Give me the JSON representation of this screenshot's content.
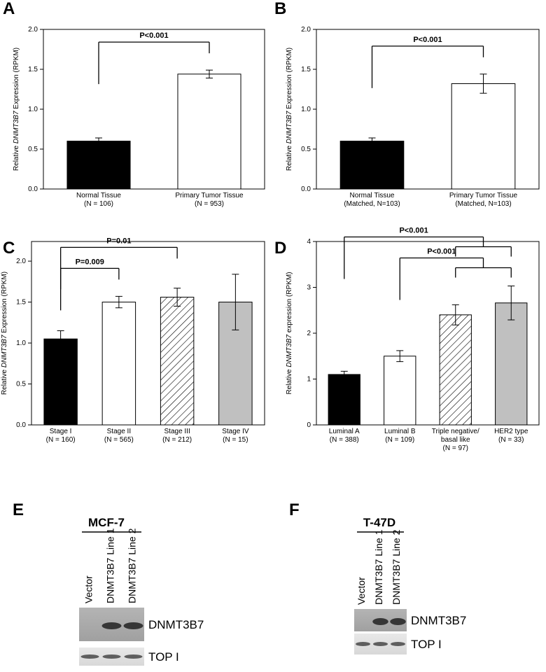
{
  "chart_data": [
    {
      "type": "bar",
      "panel": "A",
      "ylabel": {
        "before": "Relative ",
        "gene": "DNMT3B7",
        "after": " Expression (RPKM)"
      },
      "categories": [
        [
          "Normal Tissue",
          "(N = 106)"
        ],
        [
          "Primary Tumor Tissue",
          "(N = 953)"
        ]
      ],
      "values": [
        0.6,
        1.44
      ],
      "errors": [
        0.04,
        0.05
      ],
      "fills": [
        "#000000",
        "#ffffff"
      ],
      "ylim": [
        0,
        2
      ],
      "yticks": [
        {
          "value": 0,
          "label": "0.0"
        },
        0.5,
        {
          "value": 1,
          "label": "1.0"
        },
        1.5,
        {
          "value": 2,
          "label": "2.0"
        }
      ],
      "comparisons": [
        {
          "label": "P<0.001",
          "from": 0,
          "to": [
            1
          ]
        }
      ]
    },
    {
      "type": "bar",
      "panel": "B",
      "ylabel": {
        "before": "Relative ",
        "gene": "DNMT3B7",
        "after": " Expression (RPKM)"
      },
      "categories": [
        [
          "Normal Tissue",
          "(Matched, N=103)"
        ],
        [
          "Primary Tumor Tissue",
          "(Matched, N=103)"
        ]
      ],
      "values": [
        0.6,
        1.32
      ],
      "errors": [
        0.04,
        0.12
      ],
      "fills": [
        "#000000",
        "#ffffff"
      ],
      "ylim": [
        0,
        2
      ],
      "yticks": [
        {
          "value": 0,
          "label": "0.0"
        },
        0.5,
        {
          "value": 1,
          "label": "1.0"
        },
        1.5,
        {
          "value": 2,
          "label": "2.0"
        }
      ],
      "comparisons": [
        {
          "label": "P<0.001",
          "from": 0,
          "to": [
            1
          ]
        }
      ]
    },
    {
      "type": "bar",
      "panel": "C",
      "ylabel": {
        "before": "Relative ",
        "gene": "DNMT3B7",
        "after": " Expression (RPKM)"
      },
      "categories": [
        [
          "Stage I",
          "(N = 160)"
        ],
        [
          "Stage II",
          "(N = 565)"
        ],
        [
          "Stage III",
          "(N = 212)"
        ],
        [
          "Stage IV",
          "(N = 15)"
        ]
      ],
      "values": [
        1.05,
        1.5,
        1.56,
        1.5
      ],
      "errors": [
        0.1,
        0.07,
        0.11,
        0.34
      ],
      "fills": [
        "#000000",
        "#ffffff",
        "hatch",
        "#c0c0c0"
      ],
      "ylim": [
        0,
        2.24
      ],
      "yticks": [
        {
          "value": 0,
          "label": "0.0"
        },
        0.5,
        {
          "value": 1,
          "label": "1.0"
        },
        1.5,
        {
          "value": 2,
          "label": "2.0"
        }
      ],
      "comparisons": [
        {
          "label": "P=0.009",
          "from": 0,
          "to": [
            1
          ]
        },
        {
          "label": "P=0.01",
          "from": 0,
          "to": [
            2
          ]
        }
      ]
    },
    {
      "type": "bar",
      "panel": "D",
      "ylabel": {
        "before": "Relative ",
        "gene": "DNMT3B7",
        "after": " expression (RPKM)"
      },
      "categories": [
        [
          "Luminal A",
          "(N = 388)"
        ],
        [
          "Luminal B",
          "(N = 109)"
        ],
        [
          "Triple negative/",
          "basal like",
          "(N = 97)"
        ],
        [
          "HER2 type",
          "(N = 33)"
        ]
      ],
      "values": [
        1.1,
        1.5,
        2.4,
        2.66
      ],
      "errors": [
        0.07,
        0.12,
        0.22,
        0.37
      ],
      "fills": [
        "#000000",
        "#ffffff",
        "hatch",
        "#c0c0c0"
      ],
      "ylim": [
        0,
        4
      ],
      "yticks": [
        0,
        1,
        2,
        3,
        4
      ],
      "comparisons": [
        {
          "label": "P<0.001",
          "from": 1,
          "to": [
            2,
            3
          ]
        },
        {
          "label": "P<0.001",
          "from": 0,
          "to": [
            2,
            3
          ]
        }
      ]
    }
  ],
  "blots": [
    {
      "panel": "E",
      "cell_line": "MCF-7",
      "lanes": [
        "Vector",
        "DNMT3B7 Line 1",
        "DNMT3B7 Line 2"
      ],
      "rows": [
        "DNMT3B7",
        "TOP I"
      ]
    },
    {
      "panel": "F",
      "cell_line": "T-47D",
      "lanes": [
        "Vector",
        "DNMT3B7 Line 1",
        "DNMT3B7 Line 2"
      ],
      "rows": [
        "DNMT3B7",
        "TOP I"
      ]
    }
  ]
}
